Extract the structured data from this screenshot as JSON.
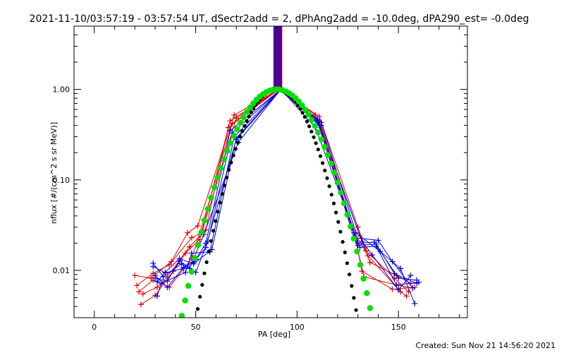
{
  "chart_data": {
    "type": "line",
    "title": "2021-11-10/03:57:19 - 03:57:54 UT, dSectr2add = 2, dPhAng2add = -10.0deg, dPA290_est= -0.0deg",
    "xlabel": "PA [deg]",
    "ylabel": "nflux [#/(cm^2 s sr MeV)]",
    "footer": "Created: Sun Nov 21 14:56:20 2021",
    "xlim": [
      -10,
      184
    ],
    "ylim": [
      0.003,
      5.0
    ],
    "log_y": true,
    "xticks": [
      0,
      50,
      100,
      150
    ],
    "xtick_labels": [
      "0",
      "50",
      "100",
      "150"
    ],
    "yticks": [
      0.01,
      0.1,
      1.0
    ],
    "ytick_labels": [
      "0.01",
      "0.10",
      "1.00"
    ],
    "colors": {
      "red": "#e00000",
      "blue": "#0000e0",
      "green": "#00e000",
      "black": "#000000"
    },
    "spike": {
      "x_center": 90.5,
      "x_half_width": 2,
      "y_bottom": 0.95,
      "y_top": 5.0
    },
    "fits": [
      {
        "color": "black",
        "sigma": 16.5,
        "x_min": 40,
        "x_max": 141
      },
      {
        "color": "green",
        "sigma": 19.5,
        "x_min": 40,
        "x_max": 141
      }
    ],
    "series": [
      {
        "color": "red",
        "x": [
          22,
          29,
          37,
          48,
          54,
          68,
          91,
          111,
          128,
          133,
          150,
          157
        ],
        "y": [
          0.0058,
          0.0078,
          0.0065,
          0.0135,
          0.036,
          0.42,
          1.0,
          0.44,
          0.026,
          0.0085,
          0.0068,
          0.0064
        ]
      },
      {
        "color": "red",
        "x": [
          20,
          28,
          38,
          46,
          51,
          69,
          91,
          111,
          130,
          134,
          148,
          155
        ],
        "y": [
          0.0088,
          0.0082,
          0.0125,
          0.026,
          0.031,
          0.52,
          1.0,
          0.5,
          0.03,
          0.0165,
          0.0082,
          0.0058
        ]
      },
      {
        "color": "red",
        "x": [
          24,
          31,
          36,
          47,
          55,
          66,
          91,
          110,
          131,
          136,
          149,
          156
        ],
        "y": [
          0.0055,
          0.0065,
          0.0085,
          0.0182,
          0.028,
          0.38,
          1.0,
          0.47,
          0.024,
          0.0122,
          0.0088,
          0.0072
        ]
      },
      {
        "color": "red",
        "x": [
          23,
          30,
          39,
          45,
          52,
          67,
          91,
          112,
          129,
          132,
          147,
          158
        ],
        "y": [
          0.0042,
          0.0053,
          0.0098,
          0.0155,
          0.022,
          0.45,
          1.0,
          0.4,
          0.022,
          0.0098,
          0.0062,
          0.0065
        ]
      },
      {
        "color": "red",
        "x": [
          21,
          29,
          37,
          48,
          53,
          70,
          91,
          109,
          127,
          135,
          151,
          154
        ],
        "y": [
          0.0068,
          0.0093,
          0.0115,
          0.023,
          0.026,
          0.48,
          1.0,
          0.52,
          0.029,
          0.0145,
          0.0058,
          0.0052
        ]
      },
      {
        "color": "blue",
        "x": [
          29,
          35,
          44,
          49,
          55,
          70,
          92,
          110,
          130,
          138,
          150,
          159
        ],
        "y": [
          0.011,
          0.0094,
          0.0105,
          0.0123,
          0.018,
          0.28,
          1.0,
          0.45,
          0.02,
          0.0205,
          0.0082,
          0.0078
        ]
      },
      {
        "color": "blue",
        "x": [
          30,
          36,
          42,
          50,
          56,
          68,
          92,
          111,
          128,
          140,
          147,
          157
        ],
        "y": [
          0.0082,
          0.0076,
          0.0128,
          0.0095,
          0.021,
          0.33,
          1.0,
          0.41,
          0.023,
          0.0215,
          0.0125,
          0.0064
        ]
      },
      {
        "color": "blue",
        "x": [
          31,
          33,
          45,
          48,
          57,
          69,
          92,
          109,
          131,
          139,
          149,
          160
        ],
        "y": [
          0.0052,
          0.0072,
          0.0095,
          0.0155,
          0.016,
          0.3,
          1.0,
          0.38,
          0.018,
          0.0185,
          0.0069,
          0.0074
        ]
      },
      {
        "color": "blue",
        "x": [
          29,
          34,
          43,
          47,
          54,
          71,
          92,
          112,
          129,
          141,
          151,
          158
        ],
        "y": [
          0.012,
          0.0085,
          0.0118,
          0.0105,
          0.025,
          0.26,
          1.0,
          0.43,
          0.026,
          0.0162,
          0.0105,
          0.0043
        ]
      },
      {
        "color": "blue",
        "x": [
          30,
          36,
          44,
          50,
          55,
          67,
          92,
          110,
          132,
          137,
          150,
          156
        ],
        "y": [
          0.0088,
          0.0065,
          0.0108,
          0.0132,
          0.02,
          0.35,
          1.0,
          0.47,
          0.021,
          0.0148,
          0.0061,
          0.0088
        ]
      },
      {
        "color": "blue",
        "x": [
          31,
          35,
          42,
          49,
          58,
          70,
          92,
          111,
          130,
          139,
          148,
          159
        ],
        "y": [
          0.0075,
          0.0095,
          0.0135,
          0.0118,
          0.017,
          0.29,
          1.0,
          0.4,
          0.019,
          0.0195,
          0.0092,
          0.0072
        ]
      }
    ]
  }
}
